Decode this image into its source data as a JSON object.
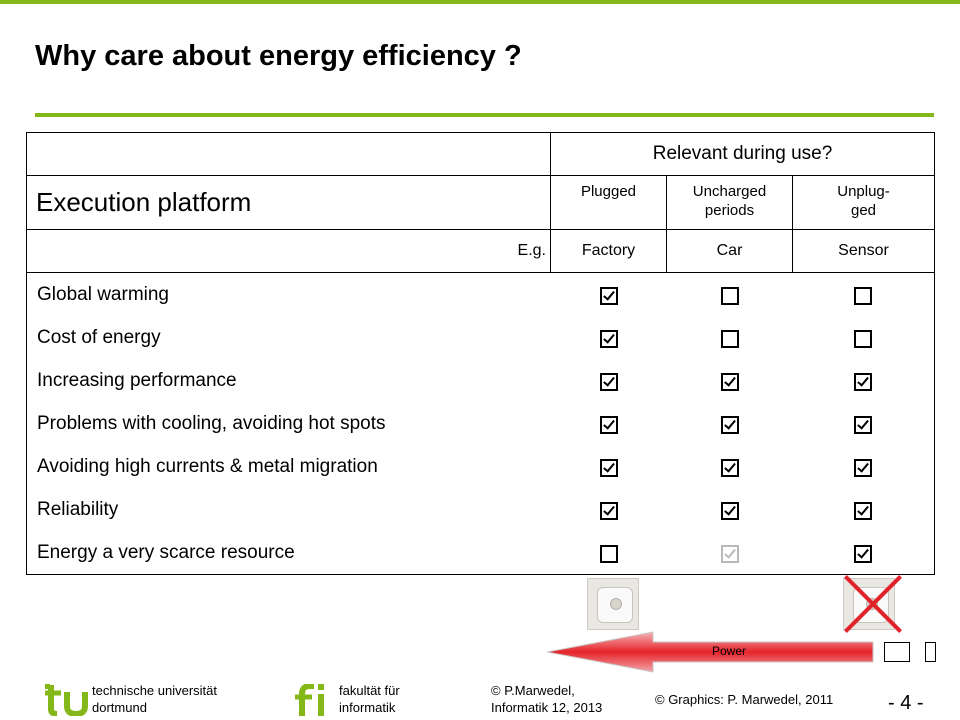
{
  "slide": {
    "title": "Why care about energy efficiency ?"
  },
  "table": {
    "relevant_header": "Relevant during use?",
    "platform_header": "Execution platform",
    "columns": [
      "Plugged",
      "Uncharged periods",
      "Unplug-ged"
    ],
    "eg_label": "E.g.",
    "examples": [
      "Factory",
      "Car",
      "Sensor"
    ],
    "rows": [
      {
        "label": "Global warming",
        "marks": [
          "checked",
          "empty",
          "empty"
        ]
      },
      {
        "label": "Cost of energy",
        "marks": [
          "checked",
          "empty",
          "empty"
        ]
      },
      {
        "label": "Increasing performance",
        "marks": [
          "checked",
          "checked",
          "checked"
        ]
      },
      {
        "label": "Problems with cooling, avoiding hot spots",
        "marks": [
          "checked",
          "checked",
          "checked"
        ]
      },
      {
        "label": "Avoiding high currents & metal migration",
        "marks": [
          "checked",
          "checked",
          "checked"
        ]
      },
      {
        "label": "Reliability",
        "marks": [
          "checked",
          "checked",
          "checked"
        ]
      },
      {
        "label": "Energy a very scarce resource",
        "marks": [
          "empty",
          "checked-faded",
          "checked"
        ]
      }
    ]
  },
  "graphic": {
    "arrow_label": "Power",
    "arrow_color": "#e5242a"
  },
  "footer": {
    "university_line1": "technische universität",
    "university_line2": "dortmund",
    "faculty_line1": "fakultät für",
    "faculty_line2": "informatik",
    "author_line1": "© P.Marwedel,",
    "author_line2": "Informatik 12,  2013",
    "graphics_credit": "© Graphics: P. Marwedel, 2011",
    "page_number": "- 4 -"
  },
  "colors": {
    "accent": "#84b819",
    "text": "#000000",
    "faded_mark": "#b9b9b9"
  }
}
